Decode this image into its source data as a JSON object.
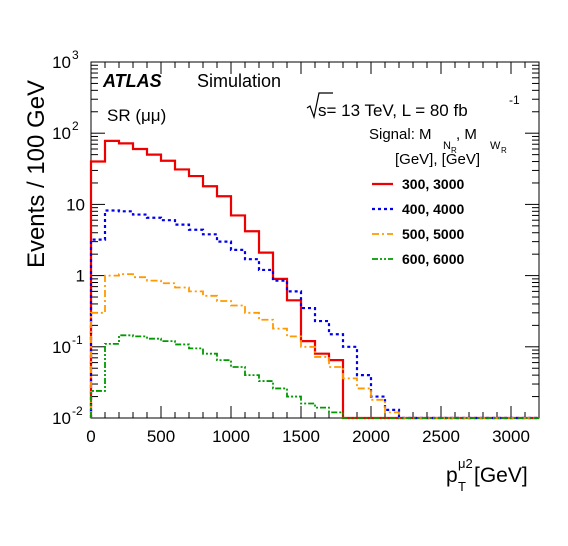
{
  "chart_data": {
    "type": "line",
    "step": true,
    "log_y": true,
    "experiment": "ATLAS",
    "experiment_status": "Simulation",
    "region_prefix": "SR (",
    "region_channel": "μμ",
    "region_suffix": ")",
    "energy_text": "s= 13 TeV, L = 80 fb",
    "lumi_exponent": "-1",
    "legend_title_signal": "Signal: M",
    "legend_title_N": "N",
    "legend_title_R1": "R",
    "legend_title_comma": ", M",
    "legend_title_W": "W",
    "legend_title_R2": "R",
    "legend_title_units": "[GeV], [GeV]",
    "ylabel": "Events / 100 GeV",
    "xlabel_p": "p",
    "xlabel_sub": "T",
    "xlabel_sup": "μ2",
    "xlabel_units": " [GeV]",
    "xlim": [
      0,
      3200
    ],
    "ylim": [
      0.01,
      1000
    ],
    "x_ticks": [
      "0",
      "500",
      "1000",
      "1500",
      "2000",
      "2500",
      "3000"
    ],
    "y_tick_labels": [
      {
        "base": "10",
        "exp": "-2"
      },
      {
        "base": "10",
        "exp": "-1"
      },
      {
        "base": "1",
        "exp": ""
      },
      {
        "base": "10",
        "exp": ""
      },
      {
        "base": "10",
        "exp": "2"
      },
      {
        "base": "10",
        "exp": "3"
      }
    ],
    "bin_edges": [
      0,
      100,
      200,
      300,
      400,
      500,
      600,
      700,
      800,
      900,
      1000,
      1100,
      1200,
      1300,
      1400,
      1500,
      1600,
      1700,
      1800,
      1900,
      2000,
      2100,
      2200,
      2300,
      2400,
      2500,
      2600,
      2700,
      2800,
      2900,
      3000,
      3100,
      3200
    ],
    "series": [
      {
        "name": "300, 3000",
        "color": "#ee0000",
        "dash": "solid",
        "values": [
          40,
          78,
          72,
          60,
          50,
          41,
          31,
          25,
          18,
          13,
          7,
          4.2,
          2.1,
          0.9,
          0.45,
          0.12,
          0.08,
          0.065,
          0.01,
          0.01,
          0.01,
          0.01,
          0.01,
          0.01,
          0.01,
          0.01,
          0.01,
          0.01,
          0.01,
          0.01,
          0.01,
          0.01
        ]
      },
      {
        "name": "400, 4000",
        "color": "#0000ee",
        "dash": "dot",
        "values": [
          3.2,
          8.2,
          8,
          7.2,
          6.5,
          6,
          5.2,
          4.4,
          3.8,
          3,
          2.3,
          1.7,
          1.2,
          0.85,
          0.6,
          0.35,
          0.23,
          0.15,
          0.1,
          0.04,
          0.02,
          0.013,
          0.01,
          0.01,
          0.01,
          0.01,
          0.01,
          0.01,
          0.01,
          0.01,
          0.01,
          0.01
        ]
      },
      {
        "name": "500, 5000",
        "color": "#ff9900",
        "dash": "dashdot",
        "values": [
          0.3,
          1.0,
          1.05,
          0.95,
          0.85,
          0.78,
          0.68,
          0.6,
          0.52,
          0.44,
          0.38,
          0.3,
          0.24,
          0.18,
          0.14,
          0.1,
          0.072,
          0.052,
          0.036,
          0.026,
          0.018,
          0.012,
          0.01,
          0.01,
          0.01,
          0.01,
          0.01,
          0.01,
          0.01,
          0.01,
          0.01,
          0.01
        ]
      },
      {
        "name": "600, 6000",
        "color": "#009900",
        "dash": "dashdotdot",
        "values": [
          0.024,
          0.11,
          0.145,
          0.14,
          0.13,
          0.12,
          0.108,
          0.095,
          0.08,
          0.065,
          0.052,
          0.04,
          0.033,
          0.026,
          0.02,
          0.016,
          0.014,
          0.012,
          0.01,
          0.01,
          0.01,
          0.01,
          0.01,
          0.01,
          0.01,
          0.01,
          0.01,
          0.01,
          0.01,
          0.01,
          0.01,
          0.01
        ]
      }
    ]
  }
}
